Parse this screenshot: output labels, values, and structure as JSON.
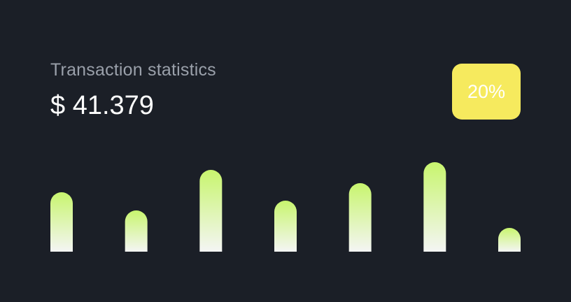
{
  "card": {
    "title": "Transaction statistics",
    "amount": "$ 41.379",
    "badge": "20%"
  },
  "colors": {
    "background": "#1b1f27",
    "title": "#9aa0aa",
    "amount": "#ffffff",
    "badge_bg": "#f6ea5e",
    "badge_text": "#ffffff",
    "bar_top": "#c8f56e",
    "bar_bottom": "#f4f5f4"
  },
  "chart_data": {
    "type": "bar",
    "categories": [
      "",
      "",
      "",
      "",
      "",
      "",
      ""
    ],
    "values": [
      85,
      59,
      117,
      73,
      98,
      128,
      34
    ],
    "ylim": [
      0,
      128
    ],
    "grid": false,
    "legend": "none"
  }
}
